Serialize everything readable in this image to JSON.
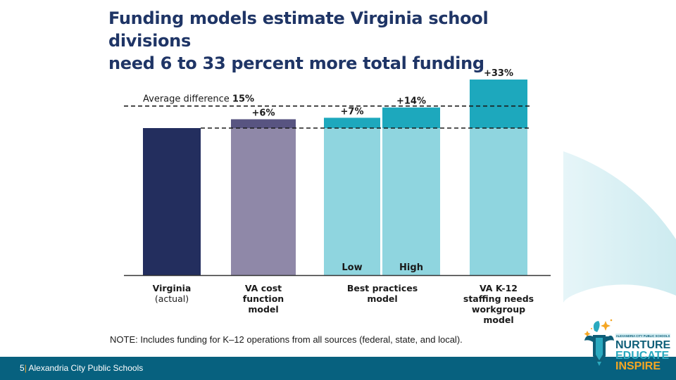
{
  "slide": {
    "title_line1": "Funding models estimate Virginia school divisions",
    "title_line2": "need 6 to 33 percent more total funding",
    "page_number": "5",
    "footer_text": "Alexandria City Public Schools",
    "logo": {
      "org_text": "ALEXANDRIA CITY PUBLIC SCHOOLS",
      "line1": "NURTURE",
      "line2": "EDUCATE",
      "line3": "INSPIRE"
    }
  },
  "chart_data": {
    "type": "bar",
    "title": "Funding models estimate Virginia school divisions need 6 to 33 percent more total funding",
    "xlabel": "",
    "ylabel": "",
    "baseline_label": "Virginia (actual)",
    "average_line": {
      "label": "Average difference",
      "value_label": "15%",
      "value": 15
    },
    "categories": [
      {
        "label_lines": [
          "Virginia",
          "(actual)"
        ],
        "bold_lines": 1
      },
      {
        "label_lines": [
          "VA cost",
          "function",
          "model"
        ],
        "bold_lines": 3
      },
      {
        "label_lines": [
          "Best practices",
          "model"
        ],
        "bold_lines": 2
      },
      {
        "label_lines": [
          "VA K-12",
          "staffing needs",
          "workgroup",
          "model"
        ],
        "bold_lines": 4
      }
    ],
    "bars": [
      {
        "category": "Virginia (actual)",
        "sub_label": "",
        "increase_pct": 0,
        "value_label": "",
        "base_color": "#232e5e",
        "top_color": "#232e5e"
      },
      {
        "category": "VA cost function model",
        "sub_label": "",
        "increase_pct": 6,
        "value_label": "+6%",
        "base_color": "#8f88a8",
        "top_color": "#585481"
      },
      {
        "category": "Best practices model",
        "sub_label": "Low",
        "increase_pct": 7,
        "value_label": "+7%",
        "base_color": "#8fd5df",
        "top_color": "#1da8bd"
      },
      {
        "category": "Best practices model",
        "sub_label": "High",
        "increase_pct": 14,
        "value_label": "+14%",
        "base_color": "#8fd5df",
        "top_color": "#1da8bd"
      },
      {
        "category": "VA K-12 staffing needs workgroup model",
        "sub_label": "",
        "increase_pct": 33,
        "value_label": "+33%",
        "base_color": "#8fd5df",
        "top_color": "#1da8bd"
      }
    ],
    "note": "NOTE: Includes funding for K–12 operations from all sources (federal, state, and local).",
    "grid": false,
    "legend": "none"
  }
}
